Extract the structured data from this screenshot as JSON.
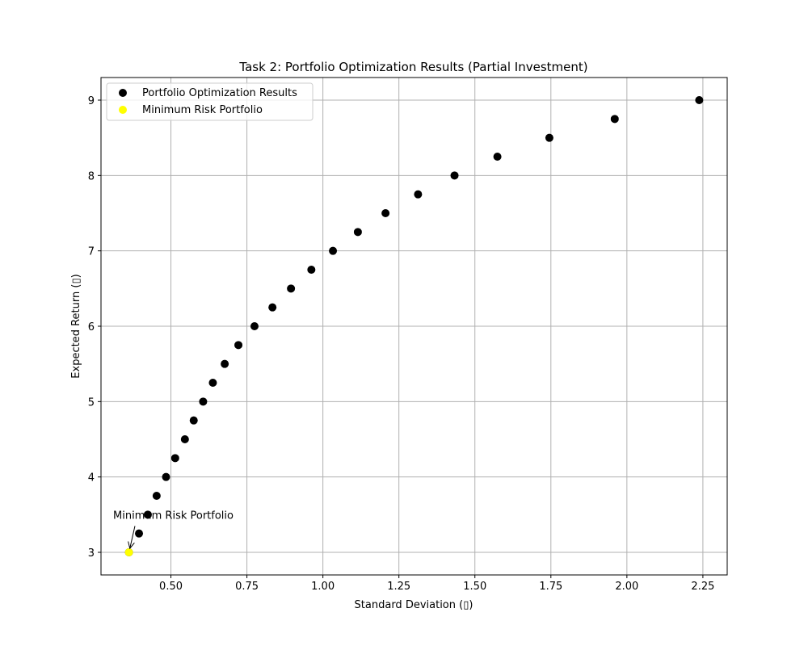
{
  "chart_data": {
    "type": "scatter",
    "title": "Task 2: Portfolio Optimization Results (Partial Investment)",
    "xlabel": "Standard Deviation (▯)",
    "ylabel": "Expected Return (▯)",
    "xlim": [
      0.27,
      2.33
    ],
    "ylim": [
      2.7,
      9.3
    ],
    "xticks": [
      "0.50",
      "0.75",
      "1.00",
      "1.25",
      "1.50",
      "1.75",
      "2.00",
      "2.25"
    ],
    "yticks": [
      "3",
      "4",
      "5",
      "6",
      "7",
      "8",
      "9"
    ],
    "grid": true,
    "legend_position": "top-left",
    "series": [
      {
        "name": "Portfolio Optimization Results",
        "color": "#000000",
        "x": [
          0.362,
          0.395,
          0.424,
          0.453,
          0.484,
          0.514,
          0.546,
          0.575,
          0.606,
          0.638,
          0.677,
          0.722,
          0.775,
          0.834,
          0.895,
          0.962,
          1.033,
          1.115,
          1.206,
          1.313,
          1.433,
          1.574,
          1.745,
          1.96,
          2.238
        ],
        "y": [
          3.0,
          3.25,
          3.5,
          3.75,
          4.0,
          4.25,
          4.5,
          4.75,
          5.0,
          5.25,
          5.5,
          5.75,
          6.0,
          6.25,
          6.5,
          6.75,
          7.0,
          7.25,
          7.5,
          7.75,
          8.0,
          8.25,
          8.5,
          8.75,
          9.0
        ]
      },
      {
        "name": "Minimum Risk Portfolio",
        "color": "#ffff00",
        "x": [
          0.362
        ],
        "y": [
          3.0
        ]
      }
    ],
    "annotations": [
      {
        "text": "Minimum Risk Portfolio",
        "x": 0.362,
        "y": 3.0,
        "text_x": 0.31,
        "text_y": 3.5
      }
    ]
  }
}
